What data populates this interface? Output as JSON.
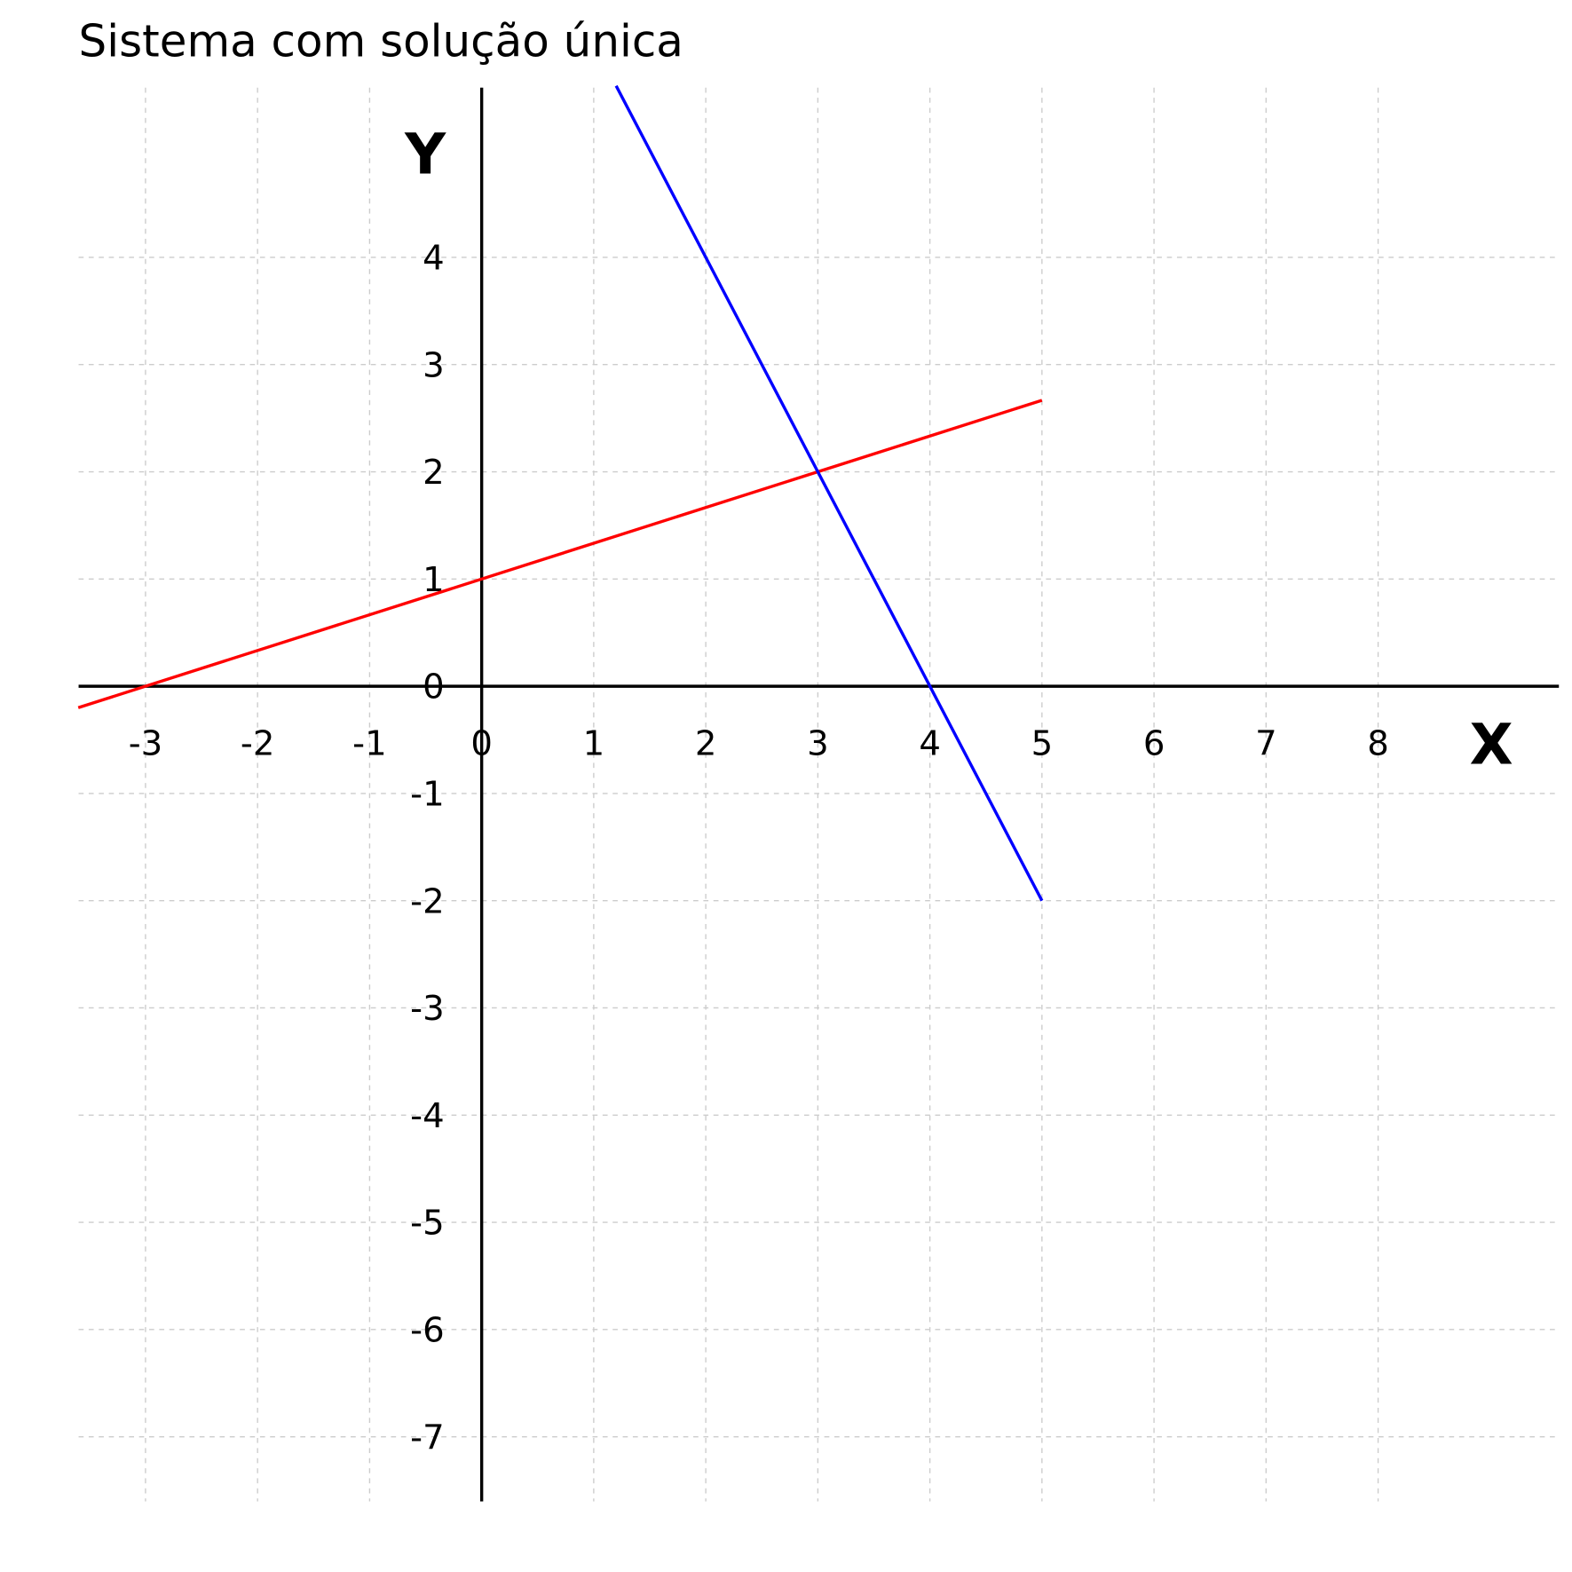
{
  "chart_data": {
    "type": "line",
    "title": "Sistema com solução única",
    "xlabel": "X",
    "ylabel": "Y",
    "xlim": [
      -3.6,
      9.6
    ],
    "ylim": [
      -7.6,
      5.6
    ],
    "grid": true,
    "x_ticks": [
      "-3",
      "-2",
      "-1",
      "0",
      "1",
      "2",
      "3",
      "4",
      "5",
      "6",
      "7",
      "8"
    ],
    "y_ticks": [
      "4",
      "3",
      "2",
      "1",
      "0",
      "-1",
      "-2",
      "-3",
      "-4",
      "-5",
      "-6",
      "-7"
    ],
    "series": [
      {
        "color": "#ff0000",
        "x": [
          -3.6,
          5
        ],
        "y": [
          -0.2,
          2.667
        ]
      },
      {
        "color": "#0000ff",
        "x": [
          1.2,
          5
        ],
        "y": [
          5.6,
          -2
        ]
      }
    ],
    "intersection": {
      "x": 3,
      "y": 2
    }
  }
}
